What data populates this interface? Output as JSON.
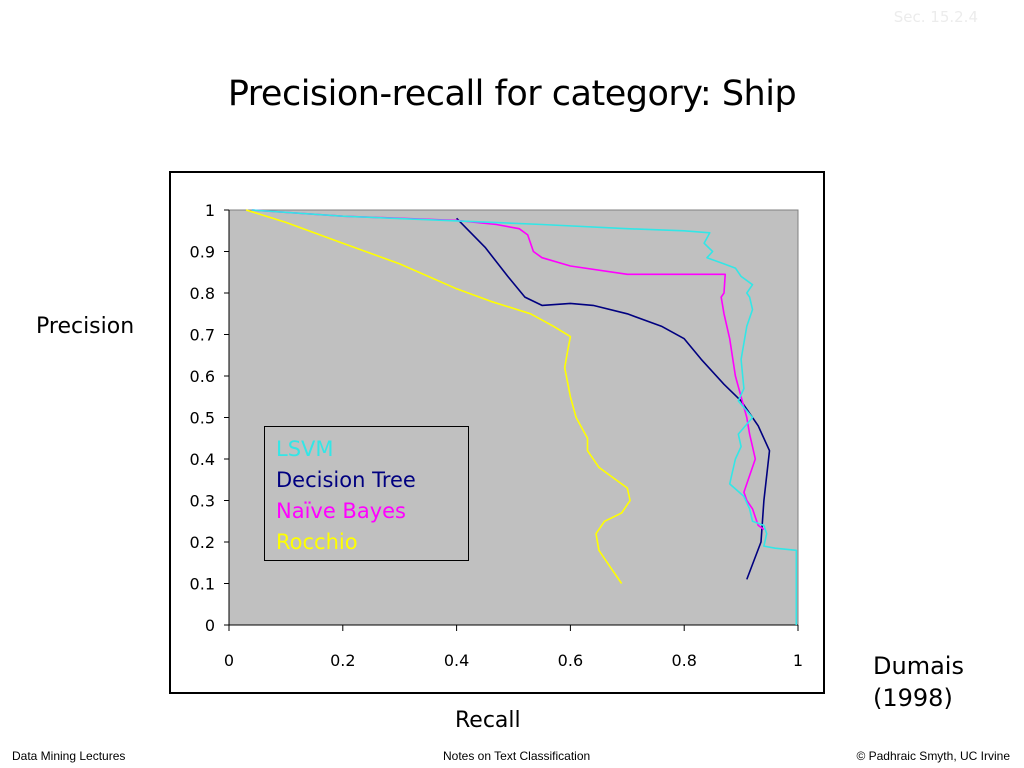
{
  "slide": {
    "title": "Precision-recall for category: Ship",
    "section_ref": "Sec. 15.2.4",
    "citation_line1": "Dumais",
    "citation_line2": "(1998)",
    "footer_left": "Data Mining Lectures",
    "footer_center": "Notes on Text Classification",
    "footer_right": "© Padhraic Smyth, UC Irvine"
  },
  "chart_data": {
    "type": "line",
    "title": "Precision-recall for category: Ship",
    "xlabel": "Recall",
    "ylabel": "Precision",
    "xlim": [
      0,
      1
    ],
    "ylim": [
      0,
      1
    ],
    "xticks": [
      "0",
      "0.2",
      "0.4",
      "0.6",
      "0.8",
      "1"
    ],
    "yticks": [
      "0",
      "0.1",
      "0.2",
      "0.3",
      "0.4",
      "0.5",
      "0.6",
      "0.7",
      "0.8",
      "0.9",
      "1"
    ],
    "grid": false,
    "plot_background": "#c0c0c0",
    "legend_position": "inside-left",
    "series": [
      {
        "name": "LSVM",
        "color": "#33e6e6",
        "points": [
          [
            0.04,
            1.0
          ],
          [
            0.2,
            0.985
          ],
          [
            0.38,
            0.975
          ],
          [
            0.55,
            0.965
          ],
          [
            0.7,
            0.955
          ],
          [
            0.8,
            0.95
          ],
          [
            0.845,
            0.945
          ],
          [
            0.835,
            0.92
          ],
          [
            0.85,
            0.9
          ],
          [
            0.84,
            0.885
          ],
          [
            0.87,
            0.87
          ],
          [
            0.89,
            0.86
          ],
          [
            0.9,
            0.84
          ],
          [
            0.92,
            0.82
          ],
          [
            0.91,
            0.8
          ],
          [
            0.915,
            0.79
          ],
          [
            0.92,
            0.76
          ],
          [
            0.91,
            0.72
          ],
          [
            0.9,
            0.64
          ],
          [
            0.905,
            0.57
          ],
          [
            0.895,
            0.54
          ],
          [
            0.92,
            0.5
          ],
          [
            0.895,
            0.46
          ],
          [
            0.9,
            0.43
          ],
          [
            0.89,
            0.4
          ],
          [
            0.88,
            0.34
          ],
          [
            0.905,
            0.31
          ],
          [
            0.915,
            0.28
          ],
          [
            0.92,
            0.25
          ],
          [
            0.94,
            0.24
          ],
          [
            0.945,
            0.22
          ],
          [
            0.94,
            0.19
          ],
          [
            0.96,
            0.185
          ],
          [
            0.997,
            0.18
          ],
          [
            0.997,
            0.0
          ]
        ]
      },
      {
        "name": "Decision Tree",
        "color": "#000080",
        "points": [
          [
            0.4,
            0.98
          ],
          [
            0.45,
            0.91
          ],
          [
            0.49,
            0.84
          ],
          [
            0.52,
            0.79
          ],
          [
            0.55,
            0.77
          ],
          [
            0.6,
            0.775
          ],
          [
            0.64,
            0.77
          ],
          [
            0.7,
            0.75
          ],
          [
            0.76,
            0.72
          ],
          [
            0.8,
            0.69
          ],
          [
            0.83,
            0.64
          ],
          [
            0.87,
            0.58
          ],
          [
            0.9,
            0.54
          ],
          [
            0.93,
            0.48
          ],
          [
            0.95,
            0.42
          ],
          [
            0.94,
            0.3
          ],
          [
            0.935,
            0.2
          ],
          [
            0.91,
            0.11
          ]
        ]
      },
      {
        "name": "Naïve Bayes",
        "color": "#ff00ff",
        "points": [
          [
            0.04,
            1.0
          ],
          [
            0.2,
            0.985
          ],
          [
            0.4,
            0.975
          ],
          [
            0.47,
            0.965
          ],
          [
            0.51,
            0.955
          ],
          [
            0.525,
            0.94
          ],
          [
            0.535,
            0.9
          ],
          [
            0.55,
            0.885
          ],
          [
            0.6,
            0.865
          ],
          [
            0.7,
            0.845
          ],
          [
            0.8,
            0.845
          ],
          [
            0.872,
            0.845
          ],
          [
            0.87,
            0.8
          ],
          [
            0.865,
            0.79
          ],
          [
            0.87,
            0.75
          ],
          [
            0.88,
            0.69
          ],
          [
            0.89,
            0.6
          ],
          [
            0.9,
            0.55
          ],
          [
            0.91,
            0.5
          ],
          [
            0.915,
            0.46
          ],
          [
            0.92,
            0.43
          ],
          [
            0.925,
            0.4
          ],
          [
            0.915,
            0.36
          ],
          [
            0.905,
            0.32
          ],
          [
            0.91,
            0.3
          ],
          [
            0.92,
            0.28
          ],
          [
            0.925,
            0.26
          ],
          [
            0.93,
            0.24
          ],
          [
            0.94,
            0.23
          ]
        ]
      },
      {
        "name": "Rocchio",
        "color": "#ffff00",
        "points": [
          [
            0.03,
            1.0
          ],
          [
            0.1,
            0.97
          ],
          [
            0.2,
            0.92
          ],
          [
            0.3,
            0.87
          ],
          [
            0.4,
            0.81
          ],
          [
            0.46,
            0.78
          ],
          [
            0.53,
            0.75
          ],
          [
            0.57,
            0.72
          ],
          [
            0.6,
            0.695
          ],
          [
            0.595,
            0.66
          ],
          [
            0.59,
            0.62
          ],
          [
            0.6,
            0.55
          ],
          [
            0.61,
            0.5
          ],
          [
            0.63,
            0.45
          ],
          [
            0.63,
            0.42
          ],
          [
            0.65,
            0.38
          ],
          [
            0.67,
            0.36
          ],
          [
            0.7,
            0.33
          ],
          [
            0.705,
            0.3
          ],
          [
            0.69,
            0.27
          ],
          [
            0.66,
            0.25
          ],
          [
            0.645,
            0.22
          ],
          [
            0.65,
            0.18
          ],
          [
            0.67,
            0.14
          ],
          [
            0.69,
            0.1
          ]
        ]
      }
    ]
  }
}
